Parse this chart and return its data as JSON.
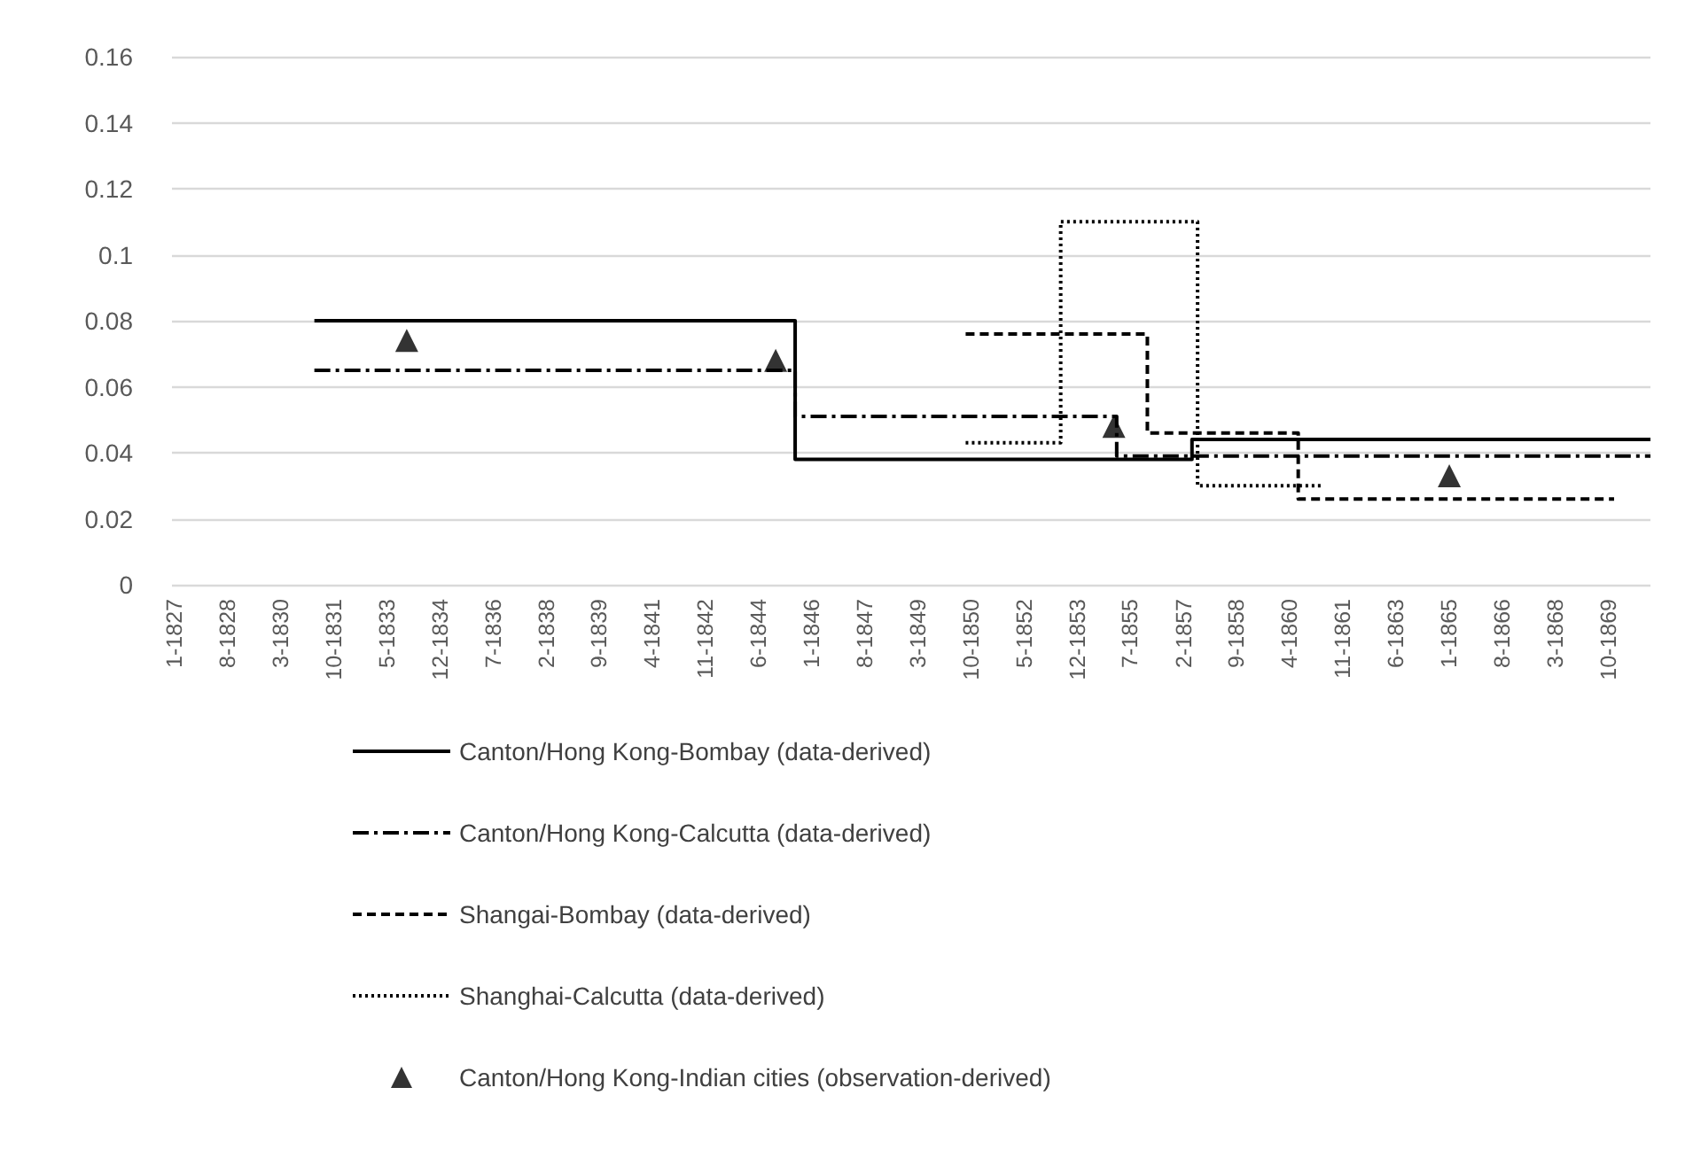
{
  "chart_data": {
    "type": "step",
    "xlim": [
      "1826-12",
      "1871-01"
    ],
    "ylim": [
      0,
      0.16
    ],
    "yticks": [
      0,
      0.02,
      0.04,
      0.06,
      0.08,
      0.1,
      0.12,
      0.14,
      0.16
    ],
    "xticks": [
      {
        "value": "1827-01",
        "label": "1-1827"
      },
      {
        "value": "1828-08",
        "label": "8-1828"
      },
      {
        "value": "1830-03",
        "label": "3-1830"
      },
      {
        "value": "1831-10",
        "label": "10-1831"
      },
      {
        "value": "1833-05",
        "label": "5-1833"
      },
      {
        "value": "1834-12",
        "label": "12-1834"
      },
      {
        "value": "1836-07",
        "label": "7-1836"
      },
      {
        "value": "1838-02",
        "label": "2-1838"
      },
      {
        "value": "1839-09",
        "label": "9-1839"
      },
      {
        "value": "1841-04",
        "label": "4-1841"
      },
      {
        "value": "1842-11",
        "label": "11-1842"
      },
      {
        "value": "1844-06",
        "label": "6-1844"
      },
      {
        "value": "1846-01",
        "label": "1-1846"
      },
      {
        "value": "1847-08",
        "label": "8-1847"
      },
      {
        "value": "1849-03",
        "label": "3-1849"
      },
      {
        "value": "1850-10",
        "label": "10-1850"
      },
      {
        "value": "1852-05",
        "label": "5-1852"
      },
      {
        "value": "1853-12",
        "label": "12-1853"
      },
      {
        "value": "1855-07",
        "label": "7-1855"
      },
      {
        "value": "1857-02",
        "label": "2-1857"
      },
      {
        "value": "1858-09",
        "label": "9-1858"
      },
      {
        "value": "1860-04",
        "label": "4-1860"
      },
      {
        "value": "1861-11",
        "label": "11-1861"
      },
      {
        "value": "1863-06",
        "label": "6-1863"
      },
      {
        "value": "1865-01",
        "label": "1-1865"
      },
      {
        "value": "1866-08",
        "label": "8-1866"
      },
      {
        "value": "1868-03",
        "label": "3-1868"
      },
      {
        "value": "1869-10",
        "label": "10-1869"
      }
    ],
    "grid": "y",
    "legend": "bottom",
    "series": [
      {
        "name": "Canton/Hong Kong-Bombay (data-derived)",
        "color": "#000000",
        "line_style": "solid",
        "x": [
          "1831-03",
          "1845-07",
          "1857-05",
          "1871-01"
        ],
        "values": [
          0.08,
          0.038,
          0.044,
          0.044
        ]
      },
      {
        "name": "Canton/Hong Kong-Calcutta (data-derived)",
        "color": "#000000",
        "line_style": "dashdot",
        "x": [
          "1831-03",
          "1845-07",
          "1855-02",
          "1871-01"
        ],
        "values": [
          0.065,
          0.051,
          0.039,
          0.039
        ]
      },
      {
        "name": "Shangai-Bombay (data-derived)",
        "color": "#000000",
        "line_style": "dashed",
        "x": [
          "1850-08",
          "1856-01",
          "1860-07",
          "1869-12"
        ],
        "values": [
          0.076,
          0.046,
          0.026,
          0.026
        ]
      },
      {
        "name": "Shanghai-Calcutta (data-derived)",
        "color": "#000000",
        "line_style": "dotted",
        "x": [
          "1850-08",
          "1853-06",
          "1857-07",
          "1861-04"
        ],
        "values": [
          0.043,
          0.11,
          0.03,
          0.03
        ]
      },
      {
        "name": "Canton/Hong Kong-Indian cities (observation-derived)",
        "type": "scatter",
        "marker": "triangle",
        "color": "#000000",
        "x": [
          "1833-12",
          "1844-12",
          "1855-01",
          "1865-01"
        ],
        "values": [
          0.074,
          0.068,
          0.048,
          0.033
        ]
      }
    ]
  }
}
